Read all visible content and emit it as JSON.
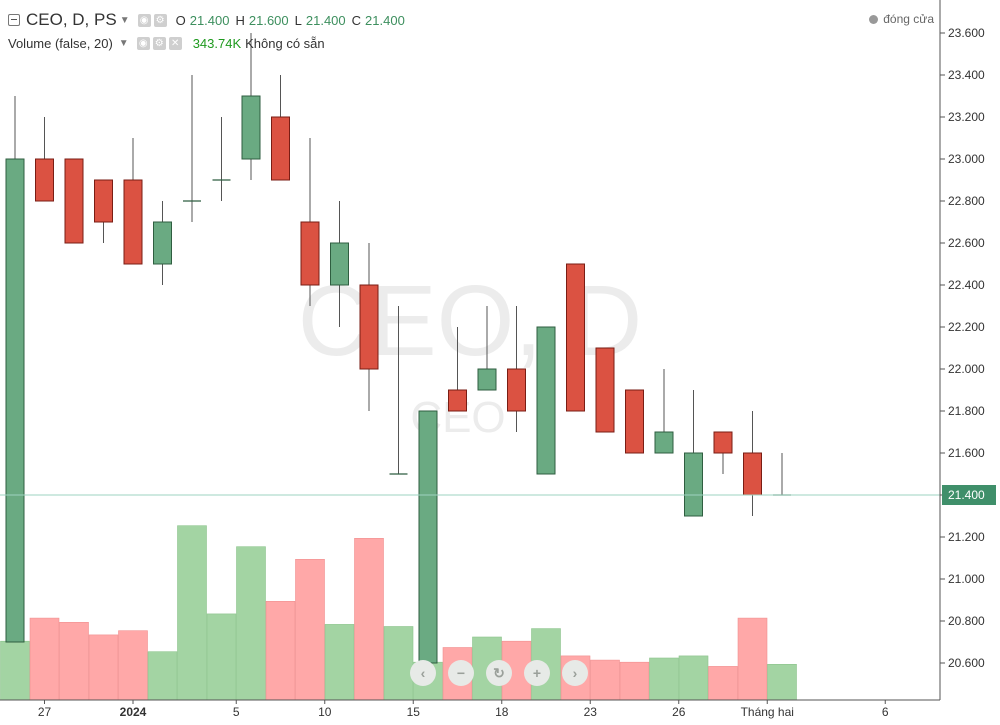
{
  "legend": {
    "symbol": "CEO, D, PS",
    "o_key": "O",
    "o_val": "21.400",
    "h_key": "H",
    "h_val": "21.600",
    "l_key": "L",
    "l_val": "21.400",
    "c_key": "C",
    "c_val": "21.400",
    "volume_label": "Volume (false, 20)",
    "volume_value": "343.74K",
    "volume_na": "Không có sẵn"
  },
  "close_legend": "đóng cửa",
  "watermark": {
    "main": "CEO, D",
    "sub": "CEO"
  },
  "colors": {
    "up": "#6aaa82",
    "up_border": "#2f5e40",
    "down": "#db5242",
    "down_border": "#7a1d14",
    "vol_up": "#a3d4a3",
    "vol_down": "#ffa8a8",
    "last_line": "#9ed3c0",
    "price_badge": "#3f8f6a"
  },
  "nav_buttons": [
    "‹",
    "−",
    "↻",
    "+",
    "›"
  ],
  "chart_data": {
    "type": "candlestick",
    "y_ticks": [
      "23.600",
      "23.400",
      "23.200",
      "23.000",
      "22.800",
      "22.600",
      "22.400",
      "22.200",
      "22.000",
      "21.800",
      "21.600",
      "21.400",
      "21.200",
      "21.000",
      "20.800",
      "20.600"
    ],
    "last_price_label": "21.400",
    "last_price": 21.4,
    "x_labels": [
      {
        "i": 1,
        "text": "27"
      },
      {
        "i": 4,
        "text": "2024",
        "bold": true
      },
      {
        "i": 7.5,
        "text": "5"
      },
      {
        "i": 10.5,
        "text": "10"
      },
      {
        "i": 13.5,
        "text": "15"
      },
      {
        "i": 16.5,
        "text": "18"
      },
      {
        "i": 19.5,
        "text": "23"
      },
      {
        "i": 22.5,
        "text": "26"
      },
      {
        "i": 25.5,
        "text": "Tháng hai"
      },
      {
        "i": 29.5,
        "text": "6"
      }
    ],
    "candles": [
      {
        "o": 20.7,
        "h": 23.3,
        "l": 20.7,
        "c": 23.0
      },
      {
        "o": 23.0,
        "h": 23.2,
        "l": 22.8,
        "c": 22.8
      },
      {
        "o": 23.0,
        "h": 23.0,
        "l": 22.6,
        "c": 22.6
      },
      {
        "o": 22.9,
        "h": 22.9,
        "l": 22.6,
        "c": 22.7
      },
      {
        "o": 22.9,
        "h": 23.1,
        "l": 22.5,
        "c": 22.5
      },
      {
        "o": 22.5,
        "h": 22.8,
        "l": 22.4,
        "c": 22.7
      },
      {
        "o": 22.8,
        "h": 23.4,
        "l": 22.7,
        "c": 22.8
      },
      {
        "o": 22.9,
        "h": 23.2,
        "l": 22.8,
        "c": 22.9
      },
      {
        "o": 23.0,
        "h": 23.6,
        "l": 22.9,
        "c": 23.3
      },
      {
        "o": 23.2,
        "h": 23.4,
        "l": 22.9,
        "c": 22.9
      },
      {
        "o": 22.7,
        "h": 23.1,
        "l": 22.3,
        "c": 22.4
      },
      {
        "o": 22.4,
        "h": 22.8,
        "l": 22.2,
        "c": 22.6
      },
      {
        "o": 22.4,
        "h": 22.6,
        "l": 21.8,
        "c": 22.0
      },
      {
        "o": 21.5,
        "h": 22.3,
        "l": 21.5,
        "c": 21.5
      },
      {
        "o": 20.6,
        "h": 21.8,
        "l": 20.6,
        "c": 21.8
      },
      {
        "o": 21.9,
        "h": 22.2,
        "l": 21.8,
        "c": 21.8
      },
      {
        "o": 21.9,
        "h": 22.3,
        "l": 21.9,
        "c": 22.0
      },
      {
        "o": 22.0,
        "h": 22.3,
        "l": 21.7,
        "c": 21.8
      },
      {
        "o": 21.5,
        "h": 22.2,
        "l": 21.5,
        "c": 22.2
      },
      {
        "o": 22.5,
        "h": 22.5,
        "l": 21.8,
        "c": 21.8
      },
      {
        "o": 22.1,
        "h": 22.1,
        "l": 21.7,
        "c": 21.7
      },
      {
        "o": 21.9,
        "h": 21.9,
        "l": 21.6,
        "c": 21.6
      },
      {
        "o": 21.6,
        "h": 22.0,
        "l": 21.6,
        "c": 21.7
      },
      {
        "o": 21.3,
        "h": 21.9,
        "l": 21.3,
        "c": 21.6
      },
      {
        "o": 21.7,
        "h": 21.7,
        "l": 21.5,
        "c": 21.6
      },
      {
        "o": 21.6,
        "h": 21.8,
        "l": 21.3,
        "c": 21.4
      },
      {
        "o": 21.4,
        "h": 21.6,
        "l": 21.4,
        "c": 21.4
      }
    ],
    "volume_relative": [
      0.28,
      0.39,
      0.37,
      0.31,
      0.33,
      0.23,
      0.83,
      0.41,
      0.73,
      0.47,
      0.67,
      0.36,
      0.77,
      0.35,
      0.18,
      0.25,
      0.3,
      0.28,
      0.34,
      0.21,
      0.19,
      0.18,
      0.2,
      0.21,
      0.16,
      0.39,
      0.17
    ]
  }
}
